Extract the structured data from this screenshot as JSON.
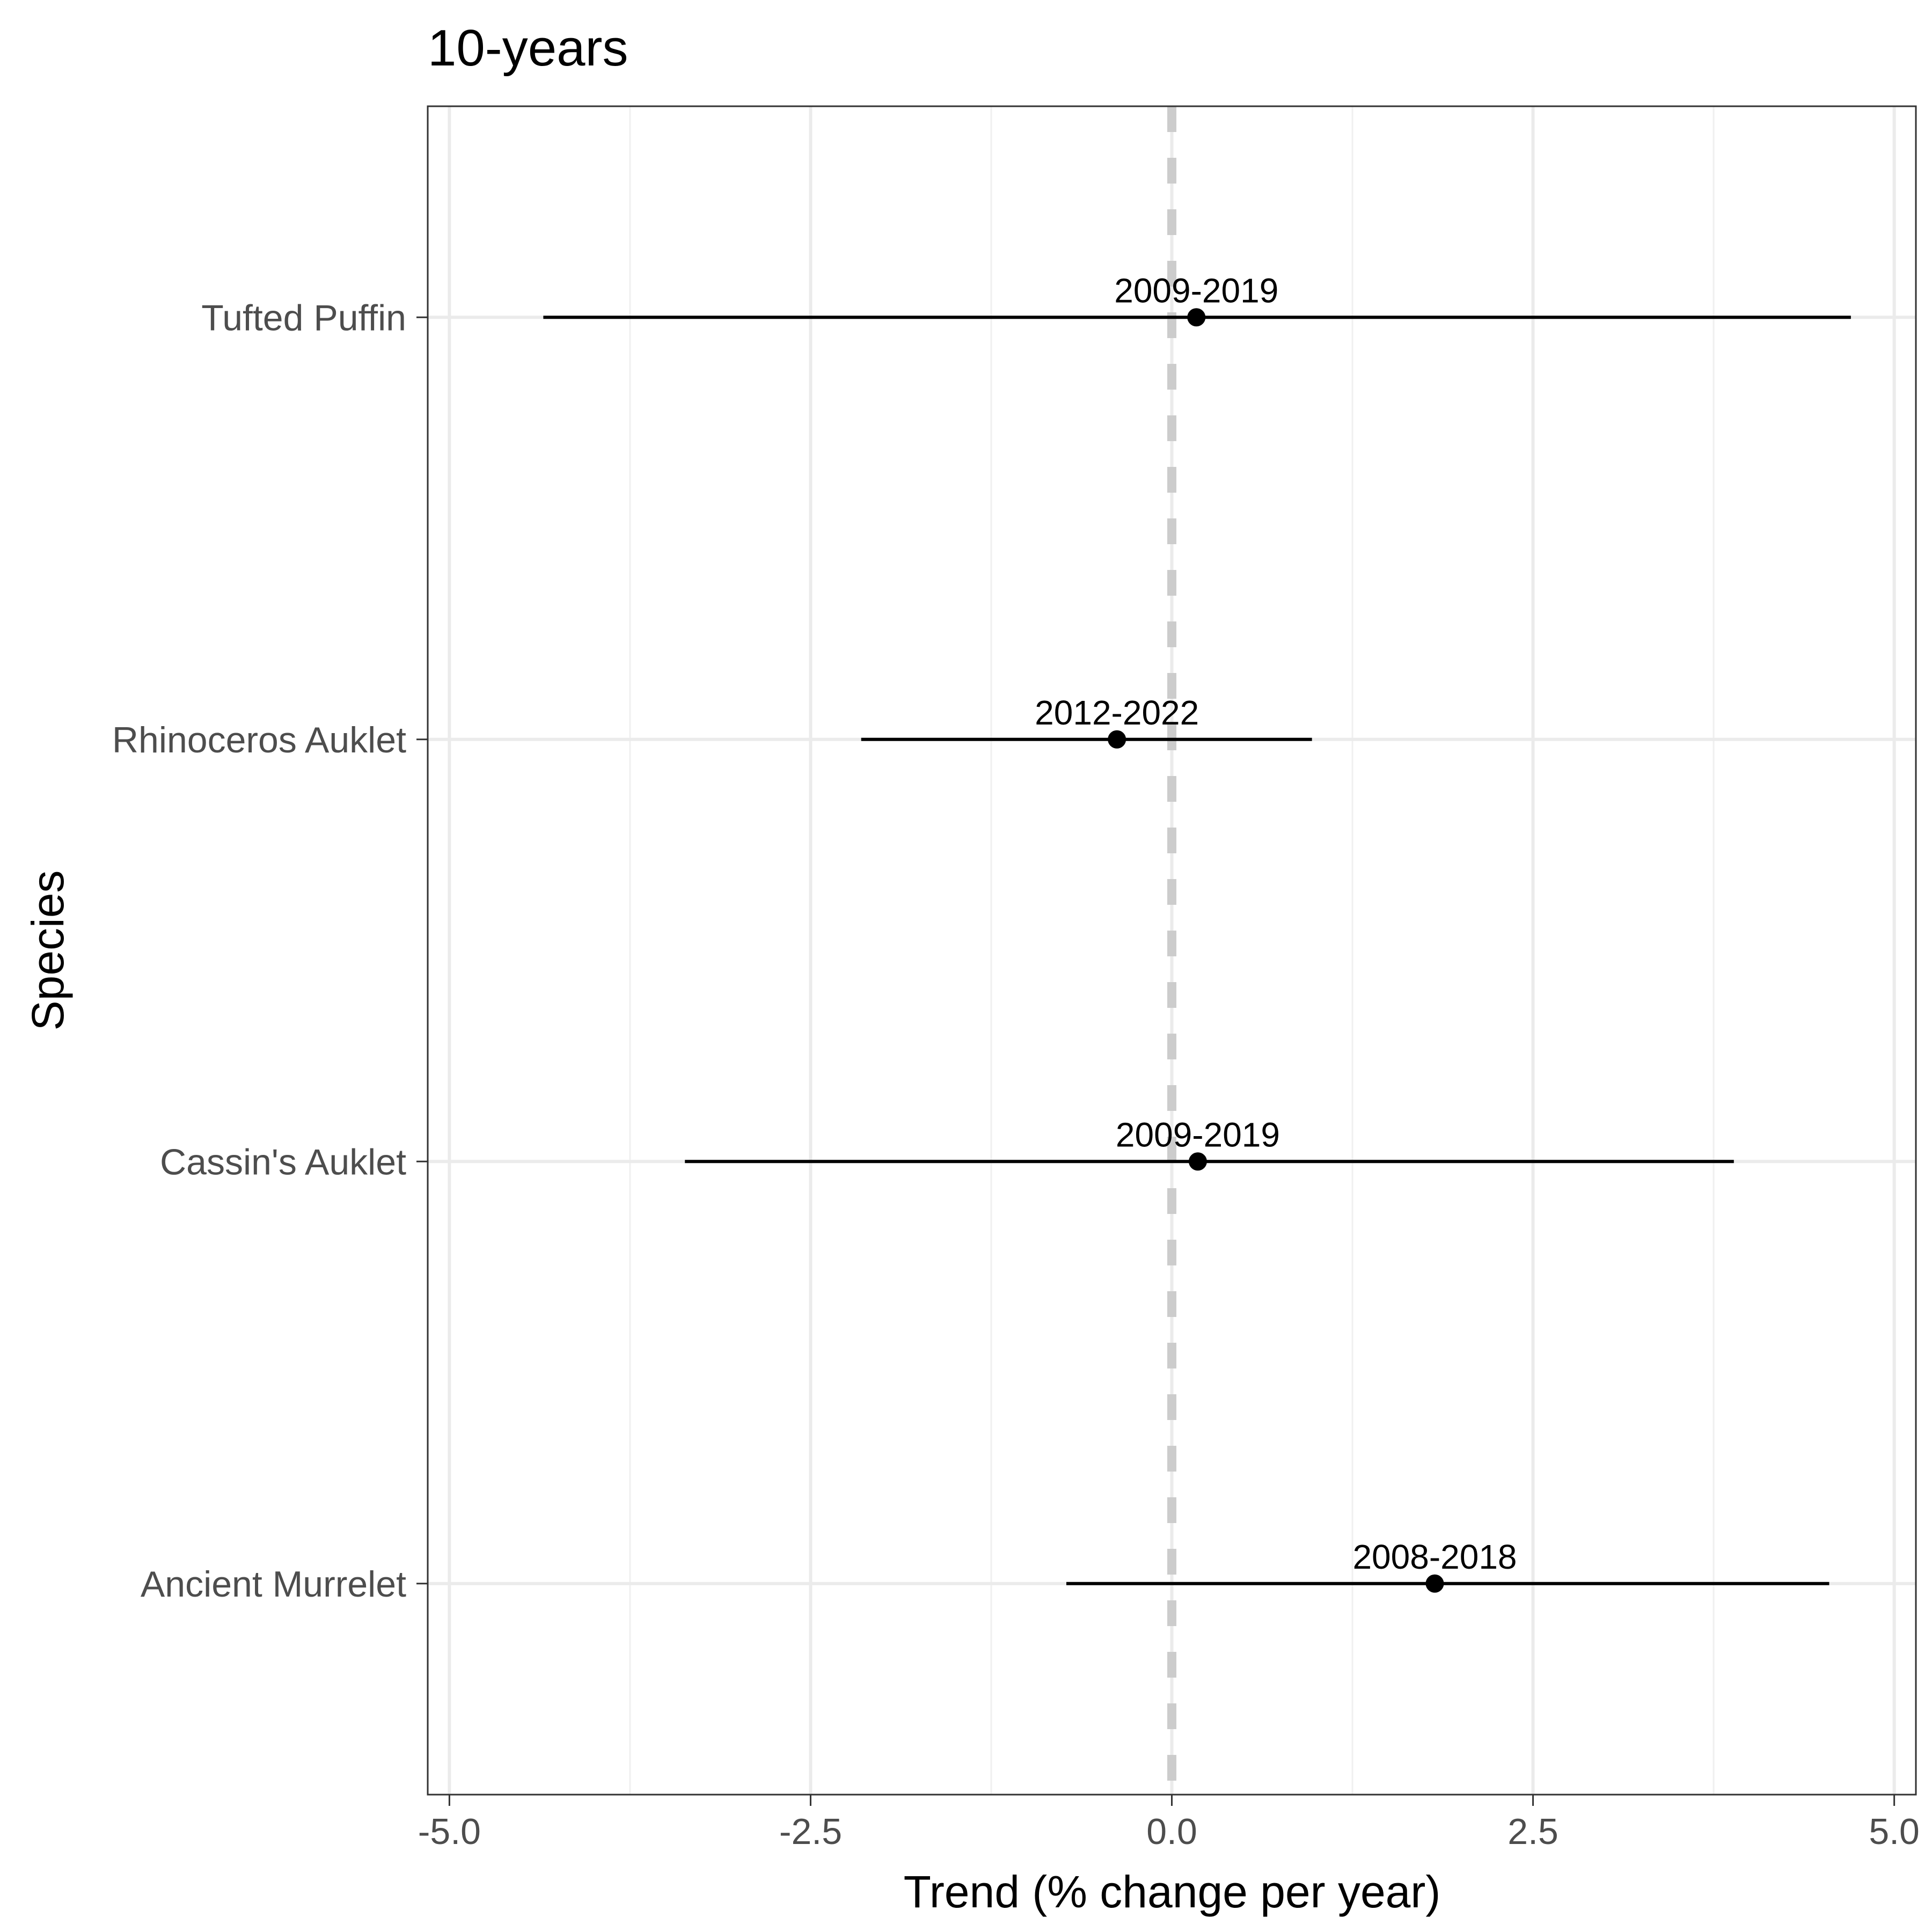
{
  "chart_data": {
    "type": "forest",
    "title": "10-years",
    "xlabel": "Trend (% change per year)",
    "ylabel": "Species",
    "xlim": [
      -5.15,
      5.15
    ],
    "x_ticks": [
      -5.0,
      -2.5,
      0.0,
      2.5,
      5.0
    ],
    "x_tick_labels": [
      "-5.0",
      "-2.5",
      "0.0",
      "2.5",
      "5.0"
    ],
    "reference_line": 0.0,
    "grid": true,
    "categories": [
      "Tufted Puffin",
      "Rhinoceros Auklet",
      "Cassin's Auklet",
      "Ancient Murrelet"
    ],
    "estimates": [
      0.17,
      -0.38,
      0.18,
      1.82
    ],
    "lower": [
      -4.35,
      -2.15,
      -3.37,
      -0.73
    ],
    "upper": [
      4.7,
      0.97,
      3.89,
      4.55
    ],
    "labels": [
      "2009-2019",
      "2012-2022",
      "2009-2019",
      "2008-2018"
    ]
  }
}
